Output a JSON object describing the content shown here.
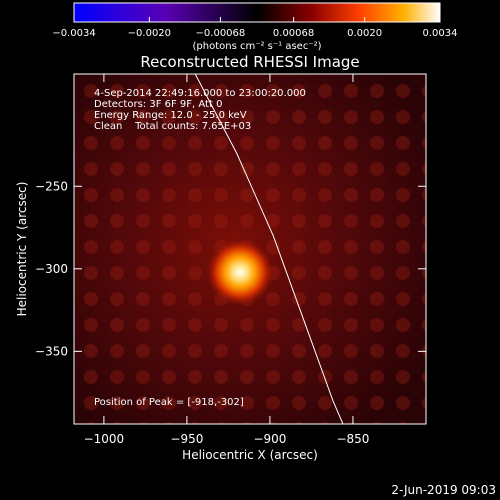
{
  "chart_data": {
    "type": "heatmap",
    "title": "Reconstructed RHESSI Image",
    "xlabel": "Heliocentric X (arcsec)",
    "ylabel": "Heliocentric Y (arcsec)",
    "xlim": [
      -1018,
      -806
    ],
    "ylim": [
      -394,
      -182
    ],
    "x_ticks": [
      -1000,
      -950,
      -900,
      -850
    ],
    "y_ticks": [
      -250,
      -300,
      -350
    ],
    "x_tick_labels": [
      "−1000",
      "−950",
      "−900",
      "−850"
    ],
    "y_tick_labels": [
      "−250",
      "−300",
      "−350"
    ],
    "colorbar": {
      "min": -0.0034,
      "max": 0.0034,
      "ticks": [
        -0.0034,
        -0.002,
        -0.00068,
        0.00068,
        0.002,
        0.0034
      ],
      "tick_labels": [
        "−0.0034",
        "−0.0020",
        "−0.00068",
        "0.00068",
        "0.0020",
        "0.0034"
      ],
      "unit_label": "(photons cm⁻² s⁻¹ asec⁻²)",
      "colormap": "rainbow-to-hot",
      "colors": [
        "#0000ff",
        "#5a00b4",
        "#000000",
        "#8b0000",
        "#ff4000",
        "#ffb000",
        "#ffffff"
      ]
    },
    "peak": {
      "x": -918,
      "y": -302,
      "value": 0.0034
    },
    "limb_curve": [
      [
        -945,
        -182
      ],
      [
        -920,
        -230
      ],
      [
        -898,
        -280
      ],
      [
        -880,
        -330
      ],
      [
        -862,
        -380
      ],
      [
        -856,
        -394
      ]
    ],
    "info_lines": [
      "4-Sep-2014 22:49:16.000 to 23:00:20.000",
      "Detectors: 3F 6F 9F, Att 0",
      "Energy Range: 12.0 - 25.0 keV",
      "Clean    Total counts: 7.65E+03"
    ],
    "peak_label": "Position of Peak = [-918,-302]",
    "grid": false
  },
  "footer": {
    "timestamp": "2-Jun-2019 09:03"
  }
}
